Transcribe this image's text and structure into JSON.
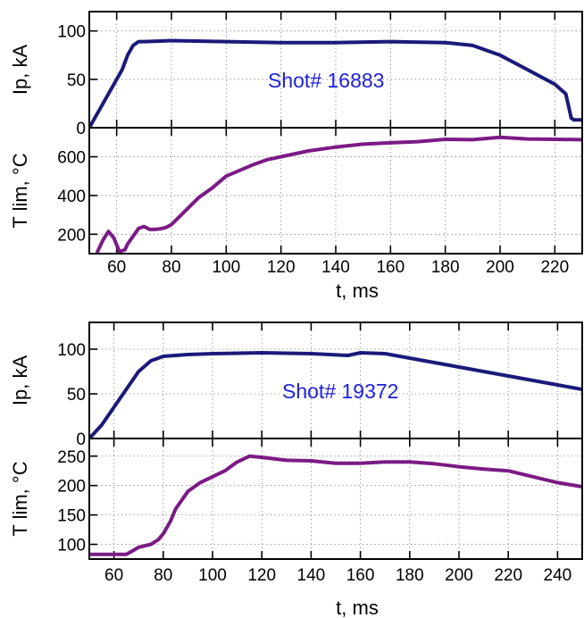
{
  "colors": {
    "ip": "#1a1a7a",
    "temp": "#7b1a85",
    "shot_label": "#1f22d8",
    "frame": "#000000"
  },
  "chart_data": [
    {
      "type": "line",
      "title": "Shot# 16883",
      "xlabel": "t, ms",
      "x_ticks": [
        60,
        80,
        100,
        120,
        140,
        160,
        180,
        200,
        220
      ],
      "xlim": [
        50,
        230
      ],
      "panels": [
        {
          "ylabel": "Ip, kA",
          "ylim": [
            0,
            120
          ],
          "y_ticks": [
            0,
            50,
            100
          ],
          "series": [
            {
              "color_key": "ip",
              "x": [
                50,
                54,
                58,
                62,
                64,
                66,
                68,
                70,
                80,
                100,
                120,
                140,
                160,
                180,
                190,
                200,
                210,
                220,
                224,
                226,
                227,
                230
              ],
              "y": [
                0,
                20,
                40,
                60,
                75,
                85,
                89,
                89,
                90,
                89,
                88,
                88,
                89,
                88,
                85,
                75,
                60,
                45,
                35,
                10,
                8,
                8
              ]
            }
          ]
        },
        {
          "ylabel": "T lim, °C",
          "ylim": [
            100,
            750
          ],
          "y_ticks": [
            200,
            400,
            600
          ],
          "series": [
            {
              "color_key": "temp",
              "x": [
                53,
                55,
                57,
                59,
                61,
                63,
                64,
                66,
                68,
                70,
                72,
                74,
                76,
                78,
                80,
                85,
                90,
                95,
                100,
                105,
                110,
                115,
                120,
                130,
                140,
                150,
                160,
                170,
                180,
                190,
                200,
                210,
                220,
                230
              ],
              "y": [
                110,
                170,
                215,
                180,
                110,
                120,
                150,
                190,
                230,
                240,
                225,
                225,
                228,
                235,
                250,
                320,
                390,
                440,
                500,
                530,
                560,
                585,
                600,
                630,
                650,
                665,
                672,
                678,
                690,
                688,
                700,
                692,
                690,
                688
              ]
            }
          ]
        }
      ]
    },
    {
      "type": "line",
      "title": "Shot# 19372",
      "xlabel": "t, ms",
      "x_ticks": [
        60,
        80,
        100,
        120,
        140,
        160,
        180,
        200,
        220,
        240
      ],
      "xlim": [
        50,
        250
      ],
      "panels": [
        {
          "ylabel": "Ip, kA",
          "ylim": [
            0,
            130
          ],
          "y_ticks": [
            0,
            50,
            100
          ],
          "series": [
            {
              "color_key": "ip",
              "x": [
                50,
                55,
                60,
                65,
                70,
                75,
                80,
                90,
                100,
                120,
                140,
                155,
                160,
                170,
                180,
                200,
                220,
                240,
                250
              ],
              "y": [
                0,
                15,
                35,
                55,
                75,
                87,
                92,
                94,
                95,
                96,
                95,
                93,
                96,
                95,
                90,
                80,
                70,
                60,
                55
              ]
            }
          ]
        },
        {
          "ylabel": "T lim, °C",
          "ylim": [
            75,
            280
          ],
          "y_ticks": [
            100,
            150,
            200,
            250
          ],
          "series": [
            {
              "color_key": "temp",
              "x": [
                50,
                65,
                68,
                70,
                75,
                78,
                80,
                83,
                85,
                90,
                95,
                100,
                105,
                110,
                115,
                120,
                130,
                140,
                150,
                160,
                170,
                180,
                190,
                200,
                210,
                220,
                230,
                240,
                250
              ],
              "y": [
                83,
                83,
                90,
                95,
                100,
                108,
                118,
                140,
                160,
                190,
                205,
                215,
                225,
                240,
                250,
                248,
                243,
                242,
                238,
                238,
                240,
                240,
                237,
                232,
                228,
                225,
                215,
                205,
                198
              ]
            }
          ]
        }
      ]
    }
  ]
}
